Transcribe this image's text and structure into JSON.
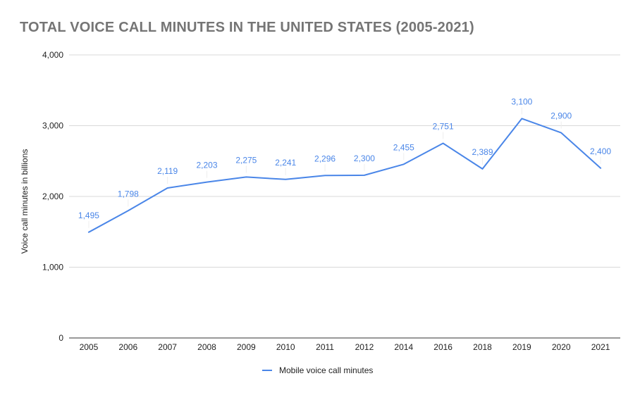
{
  "chart_data": {
    "type": "line",
    "title": "TOTAL VOICE CALL MINUTES IN THE UNITED STATES (2005-2021)",
    "xlabel": "",
    "ylabel": "Voice call minutes in billions",
    "categories": [
      "2005",
      "2006",
      "2007",
      "2008",
      "2009",
      "2010",
      "2011",
      "2012",
      "2014",
      "2016",
      "2018",
      "2019",
      "2020",
      "2021"
    ],
    "series": [
      {
        "name": "Mobile voice call minutes",
        "values": [
          1495,
          1798,
          2119,
          2203,
          2275,
          2241,
          2296,
          2300,
          2455,
          2751,
          2389,
          3100,
          2900,
          2400
        ],
        "data_labels": [
          "1,495",
          "1,798",
          "2,119",
          "2,203",
          "2,275",
          "2,241",
          "2,296",
          "2,300",
          "2,455",
          "2,751",
          "2,389",
          "3,100",
          "2,900",
          "2,400"
        ],
        "color": "#4a86e8"
      }
    ],
    "ylim": [
      0,
      4000
    ],
    "yticks": [
      0,
      1000,
      2000,
      3000,
      4000
    ],
    "ytick_labels": [
      "0",
      "1,000",
      "2,000",
      "3,000",
      "4,000"
    ],
    "grid": true,
    "legend_position": "bottom-center",
    "colors": {
      "line": "#4a86e8",
      "grid": "#d9d9d9",
      "axis": "#333333",
      "title": "#757575"
    }
  }
}
